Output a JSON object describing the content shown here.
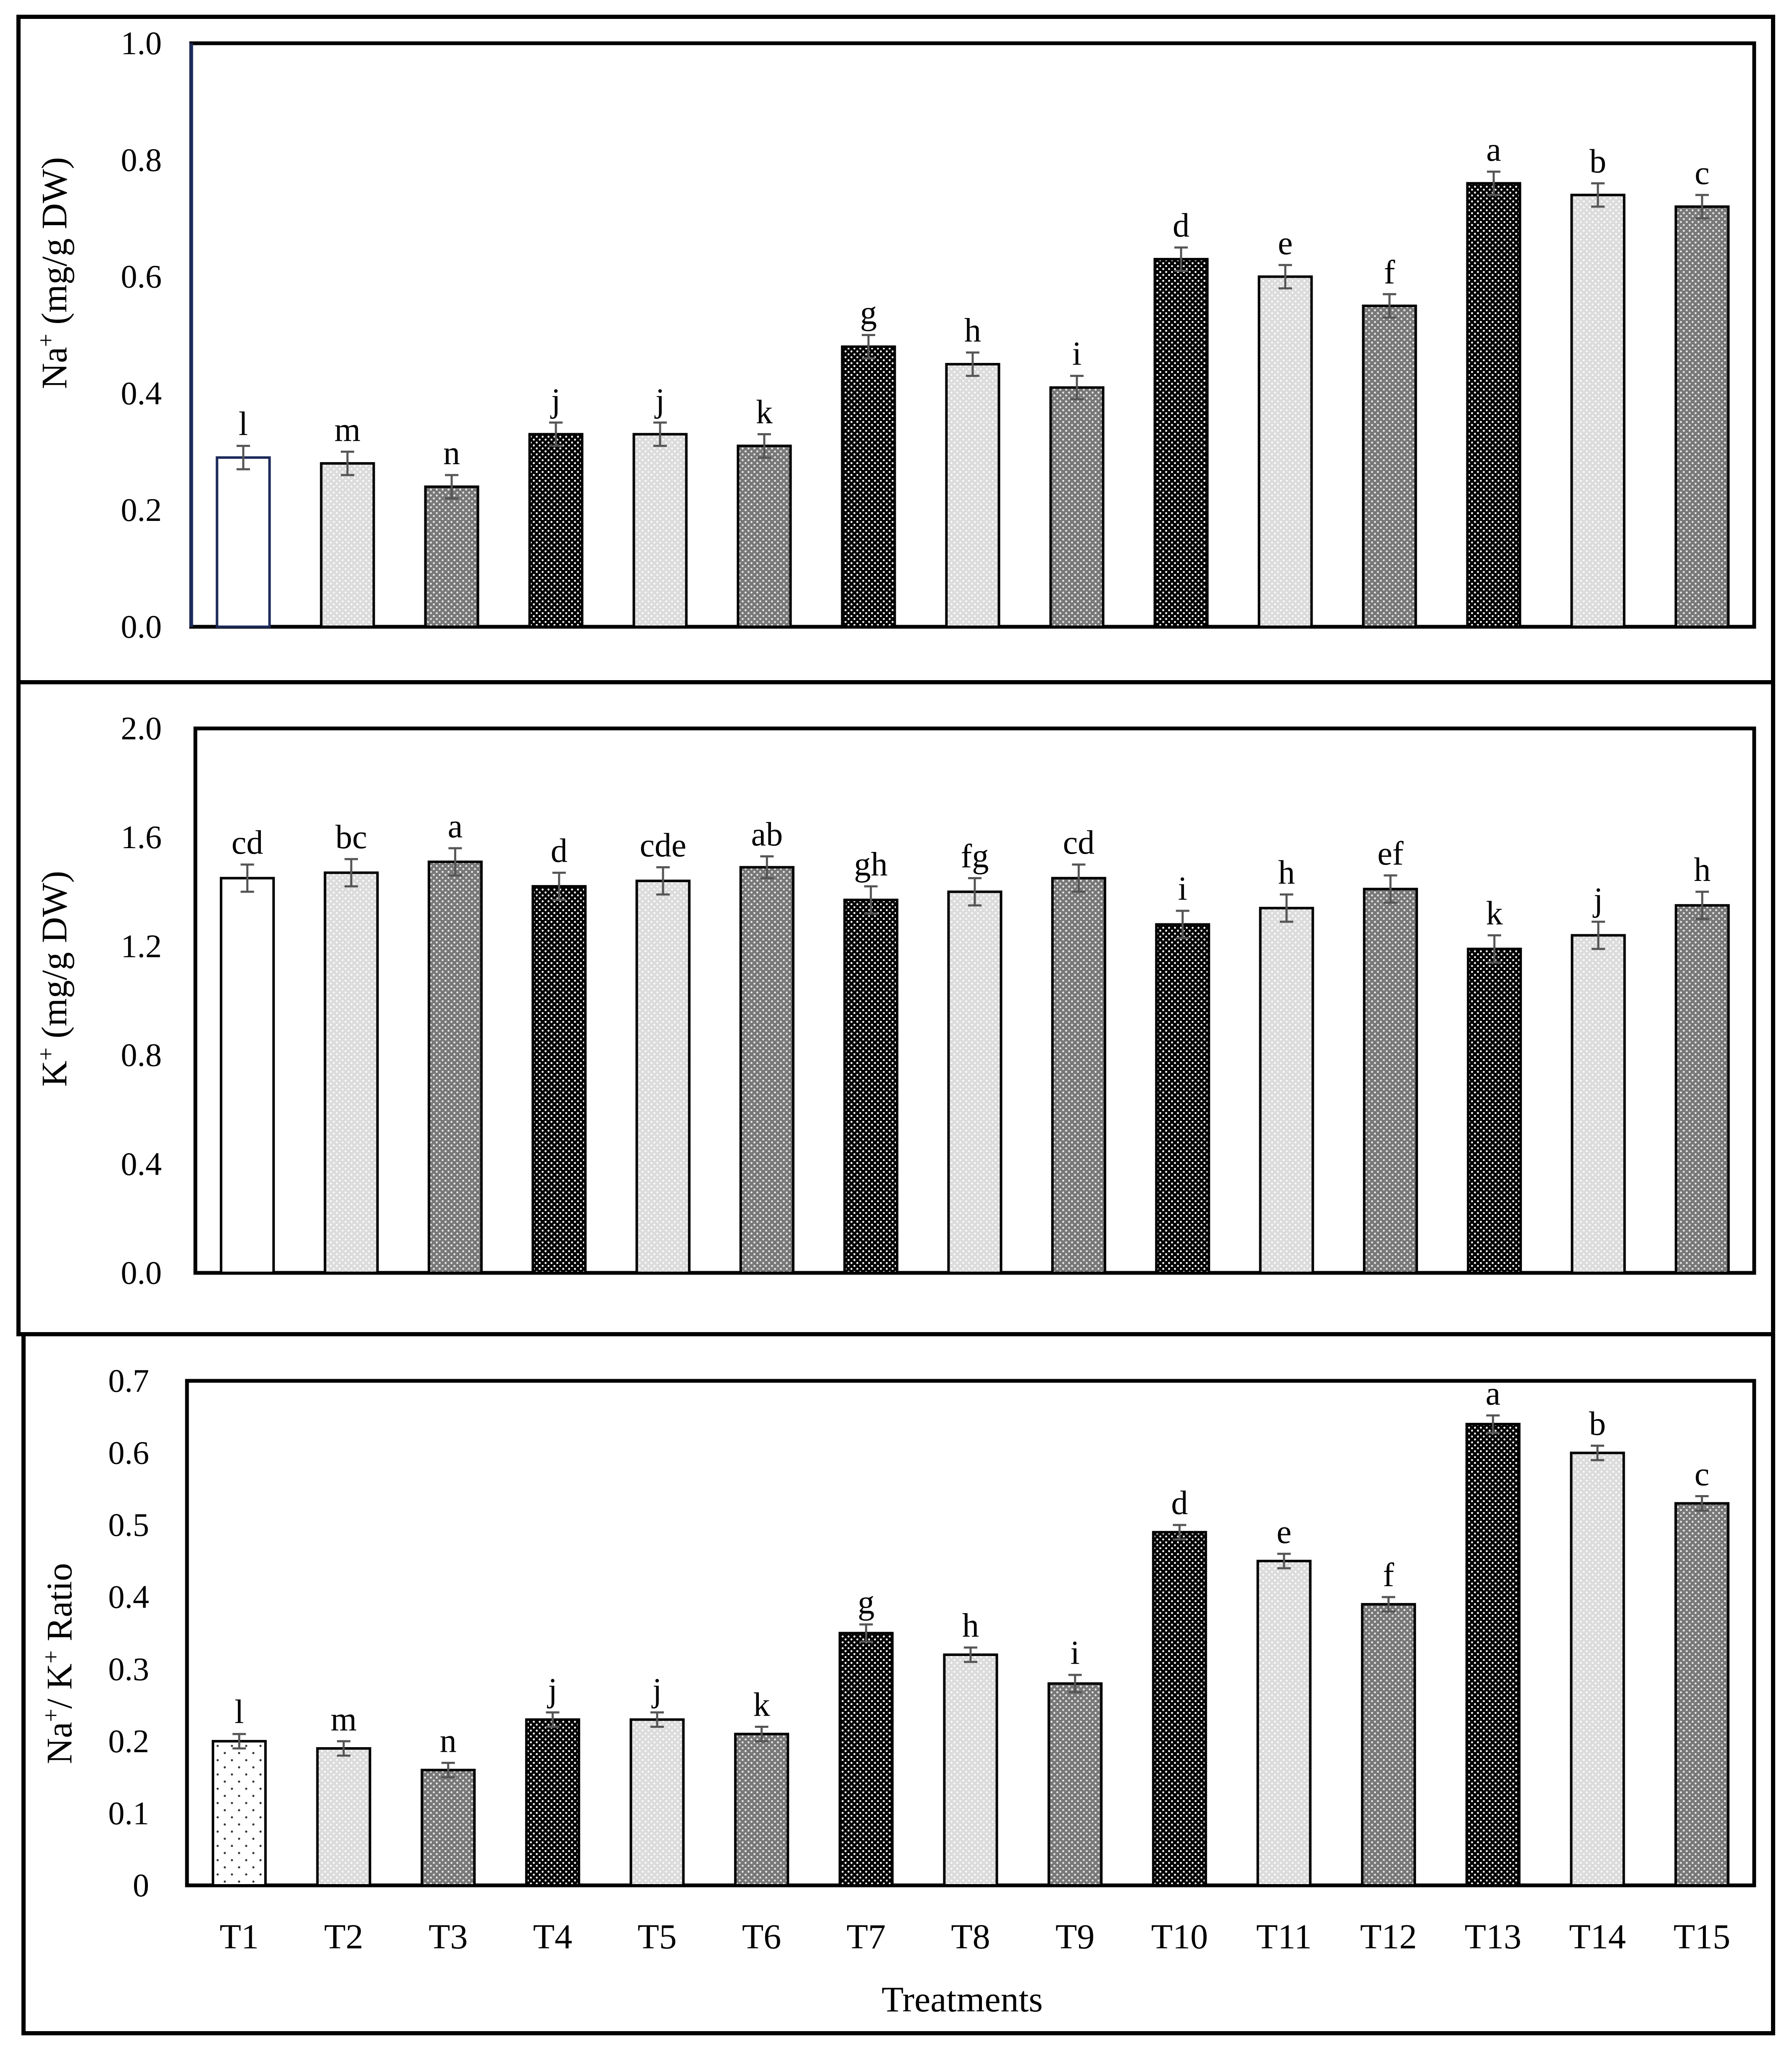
{
  "colors": {
    "white_fill": "#ffffff",
    "light": "#dcdcdc",
    "medium": "#787878",
    "dark": "#000000",
    "dot_on_light": "#ffffff",
    "dot_on_dark": "#ffffff",
    "first_bar_outline": "#1c2a5a",
    "error_bar": "#555555"
  },
  "chart_data": [
    {
      "type": "bar",
      "ylabel": {
        "base": "Na",
        "sup": "+",
        "rest": " (mg/g DW)"
      },
      "ylim": [
        0,
        1.0
      ],
      "yticks": [
        "0.0",
        "0.2",
        "0.4",
        "0.6",
        "0.8",
        "1.0"
      ],
      "categories": [
        "T1",
        "T2",
        "T3",
        "T4",
        "T5",
        "T6",
        "T7",
        "T8",
        "T9",
        "T10",
        "T11",
        "T12",
        "T13",
        "T14",
        "T15"
      ],
      "values": [
        0.29,
        0.28,
        0.24,
        0.33,
        0.33,
        0.31,
        0.48,
        0.45,
        0.41,
        0.63,
        0.6,
        0.55,
        0.76,
        0.74,
        0.72
      ],
      "errors": [
        0.02,
        0.02,
        0.02,
        0.02,
        0.02,
        0.02,
        0.02,
        0.02,
        0.02,
        0.02,
        0.02,
        0.02,
        0.02,
        0.02,
        0.02
      ],
      "letters": [
        "l",
        "m",
        "n",
        "j",
        "j",
        "k",
        "g",
        "h",
        "i",
        "d",
        "e",
        "f",
        "a",
        "b",
        "c"
      ]
    },
    {
      "type": "bar",
      "ylabel": {
        "base": "K",
        "sup": "+",
        "rest": " (mg/g DW)"
      },
      "ylim": [
        0,
        2.0
      ],
      "yticks": [
        "0.0",
        "0.4",
        "0.8",
        "1.2",
        "1.6",
        "2.0"
      ],
      "categories": [
        "T1",
        "T2",
        "T3",
        "T4",
        "T5",
        "T6",
        "T7",
        "T8",
        "T9",
        "T10",
        "T11",
        "T12",
        "T13",
        "T14",
        "T15"
      ],
      "values": [
        1.45,
        1.47,
        1.51,
        1.42,
        1.44,
        1.49,
        1.37,
        1.4,
        1.45,
        1.28,
        1.34,
        1.41,
        1.19,
        1.24,
        1.35
      ],
      "errors": [
        0.05,
        0.05,
        0.05,
        0.05,
        0.05,
        0.04,
        0.05,
        0.05,
        0.05,
        0.05,
        0.05,
        0.05,
        0.05,
        0.05,
        0.05
      ],
      "letters": [
        "cd",
        "bc",
        "a",
        "d",
        "cde",
        "ab",
        "gh",
        "fg",
        "cd",
        "i",
        "h",
        "ef",
        "k",
        "j",
        "h"
      ]
    },
    {
      "type": "bar",
      "ylabel": {
        "base": "Na",
        "sup": "+",
        "mid": "/ K",
        "sup2": "+",
        "rest": " Ratio"
      },
      "ylim": [
        0,
        0.7
      ],
      "yticks": [
        "0",
        "0.1",
        "0.2",
        "0.3",
        "0.4",
        "0.5",
        "0.6",
        "0.7"
      ],
      "categories": [
        "T1",
        "T2",
        "T3",
        "T4",
        "T5",
        "T6",
        "T7",
        "T8",
        "T9",
        "T10",
        "T11",
        "T12",
        "T13",
        "T14",
        "T15"
      ],
      "values": [
        0.2,
        0.19,
        0.16,
        0.23,
        0.23,
        0.21,
        0.35,
        0.32,
        0.28,
        0.49,
        0.45,
        0.39,
        0.64,
        0.6,
        0.53
      ],
      "errors": [
        0.01,
        0.01,
        0.01,
        0.01,
        0.01,
        0.01,
        0.012,
        0.01,
        0.012,
        0.01,
        0.01,
        0.01,
        0.012,
        0.01,
        0.01
      ],
      "letters": [
        "l",
        "m",
        "n",
        "j",
        "j",
        "k",
        "g",
        "h",
        "i",
        "d",
        "e",
        "f",
        "a",
        "b",
        "c"
      ],
      "xlabel": "Treatments"
    }
  ]
}
